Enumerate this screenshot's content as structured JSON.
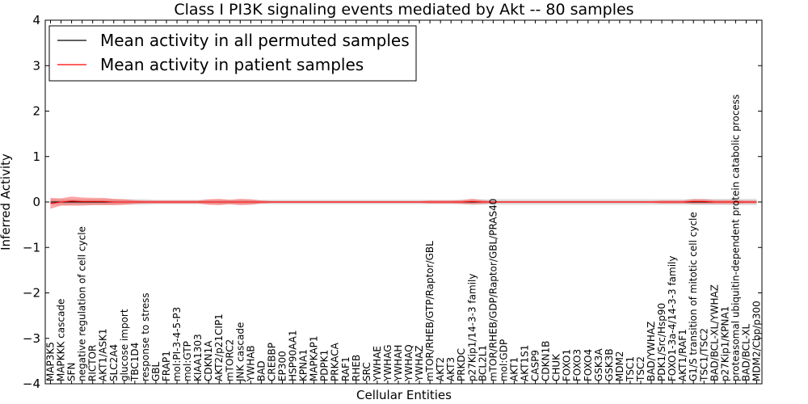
{
  "chart_data": {
    "type": "line",
    "title": "Class I PI3K signaling events mediated by Akt -- 80 samples",
    "xlabel": "Cellular Entities",
    "ylabel": "Inferred Activity",
    "ylim": [
      -4,
      4
    ],
    "yticks": [
      "4",
      "3",
      "2",
      "1",
      "0",
      "−1",
      "−2",
      "−3",
      "−4"
    ],
    "ytick_values": [
      4,
      3,
      2,
      1,
      0,
      -1,
      -2,
      -3,
      -4
    ],
    "legend": {
      "placement": "top-left",
      "entries": [
        {
          "label": "Mean activity in all permuted samples",
          "color": "#000000"
        },
        {
          "label": "Mean activity in patient samples",
          "color": "#ff0000"
        }
      ]
    },
    "categories": [
      "MAP3K5",
      "MAPKKK cascade",
      "SFN",
      "negative regulation of cell cycle",
      "RICTOR",
      "AKT1/ASK1",
      "SLC2A4",
      "glucose import",
      "TBC1D4",
      "response to stress",
      "GBL",
      "FRAP1",
      "mol:PI-3-4-5-P3",
      "mol:GTP",
      "KIAA1303",
      "CDKN1A",
      "AKT2/p21CIP1",
      "mTORC2",
      "JNK cascade",
      "YWHAB",
      "BAD",
      "CREBBP",
      "EP300",
      "HSP90AA1",
      "KPNA1",
      "MAPKAP1",
      "PDPK1",
      "PRKACA",
      "RAF1",
      "RHEB",
      "SRC",
      "YWHAE",
      "YWHAG",
      "YWHAH",
      "YWHAQ",
      "YWHAZ",
      "mTOR/RHEB/GTP/Raptor/GBL",
      "AKT2",
      "AKT3",
      "PRKDC",
      "p27Kip1/14-3-3 family",
      "BCL2L1",
      "mTOR/RHEB/GDP/Raptor/GBL/PRAS40",
      "mol:GDP",
      "AKT1",
      "AKT1S1",
      "CASP9",
      "CDKN1B",
      "CHUK",
      "FOXO1",
      "FOXO3",
      "FOXO4",
      "GSK3A",
      "GSK3B",
      "MDM2",
      "TSC1",
      "TSC2",
      "BAD/YWHAZ",
      "PDK1/Src/Hsp90",
      "FOXO1-3a-4/14-3-3 family",
      "AKT1/RAF1",
      "G1/S transition of mitotic cell cycle",
      "TSC1/TSC2",
      "BAD/BCL-XL/YWHAZ",
      "p27Kip1/KPNA1",
      "proteasomal ubiquitin-dependent protein catabolic process",
      "BAD/BCL-XL",
      "MDM2/Cbp/p300"
    ],
    "series": [
      {
        "name": "Mean activity in all permuted samples",
        "color": "#000000",
        "values": [
          0.0,
          0.0,
          0.0,
          0.0,
          0.0,
          0.0,
          0.0,
          0.0,
          0.0,
          0.0,
          0.0,
          0.0,
          0.0,
          0.0,
          0.0,
          0.0,
          0.0,
          0.0,
          0.0,
          0.0,
          0.0,
          0.0,
          0.0,
          0.0,
          0.0,
          0.0,
          0.0,
          0.0,
          0.0,
          0.0,
          0.0,
          0.0,
          0.0,
          0.0,
          0.0,
          0.0,
          0.0,
          0.0,
          0.0,
          0.0,
          0.0,
          0.0,
          0.0,
          0.0,
          0.0,
          0.0,
          0.0,
          0.0,
          0.0,
          0.0,
          0.0,
          0.0,
          0.0,
          0.0,
          0.0,
          0.0,
          0.0,
          0.0,
          0.0,
          0.0,
          0.0,
          0.0,
          0.0,
          0.0,
          0.0,
          0.0,
          0.0,
          0.0
        ],
        "band": [
          0.06,
          0.06,
          0.06,
          0.06,
          0.06,
          0.06,
          0.06,
          0.06,
          0.06,
          0.06,
          0.05,
          0.05,
          0.05,
          0.05,
          0.05,
          0.05,
          0.05,
          0.05,
          0.05,
          0.05,
          0.05,
          0.05,
          0.05,
          0.05,
          0.05,
          0.05,
          0.05,
          0.05,
          0.05,
          0.05,
          0.05,
          0.05,
          0.05,
          0.05,
          0.05,
          0.05,
          0.05,
          0.05,
          0.05,
          0.05,
          0.06,
          0.06,
          0.06,
          0.06,
          0.06,
          0.06,
          0.06,
          0.06,
          0.06,
          0.06,
          0.06,
          0.06,
          0.06,
          0.06,
          0.06,
          0.06,
          0.06,
          0.06,
          0.06,
          0.06,
          0.06,
          0.07,
          0.07,
          0.07,
          0.07,
          0.07,
          0.07,
          0.07
        ]
      },
      {
        "name": "Mean activity in patient samples",
        "color": "#ff0000",
        "values": [
          -0.03,
          0.0,
          0.02,
          0.01,
          0.01,
          0.01,
          0.0,
          0.0,
          0.0,
          0.0,
          0.0,
          0.0,
          0.0,
          0.0,
          0.0,
          0.0,
          0.0,
          0.0,
          0.0,
          0.0,
          0.0,
          0.0,
          0.0,
          0.0,
          0.0,
          0.0,
          0.0,
          0.0,
          0.0,
          0.0,
          0.0,
          0.0,
          0.0,
          0.0,
          0.0,
          0.0,
          0.0,
          0.0,
          0.0,
          0.0,
          0.01,
          0.0,
          0.0,
          0.0,
          0.0,
          0.0,
          0.0,
          0.0,
          0.0,
          0.0,
          0.0,
          0.0,
          0.0,
          0.0,
          0.0,
          0.0,
          0.0,
          0.0,
          0.0,
          0.0,
          0.0,
          0.01,
          0.01,
          0.0,
          0.0,
          0.0,
          0.0,
          0.0
        ],
        "band": [
          0.12,
          0.08,
          0.1,
          0.09,
          0.08,
          0.08,
          0.07,
          0.06,
          0.04,
          0.03,
          0.03,
          0.03,
          0.03,
          0.03,
          0.03,
          0.06,
          0.07,
          0.05,
          0.07,
          0.06,
          0.03,
          0.02,
          0.02,
          0.02,
          0.02,
          0.02,
          0.02,
          0.02,
          0.02,
          0.02,
          0.02,
          0.02,
          0.02,
          0.02,
          0.02,
          0.02,
          0.03,
          0.03,
          0.03,
          0.04,
          0.06,
          0.04,
          0.02,
          0.02,
          0.02,
          0.02,
          0.02,
          0.02,
          0.02,
          0.02,
          0.02,
          0.02,
          0.02,
          0.02,
          0.02,
          0.02,
          0.02,
          0.02,
          0.03,
          0.03,
          0.03,
          0.05,
          0.05,
          0.04,
          0.04,
          0.04,
          0.03,
          0.03
        ]
      }
    ]
  }
}
